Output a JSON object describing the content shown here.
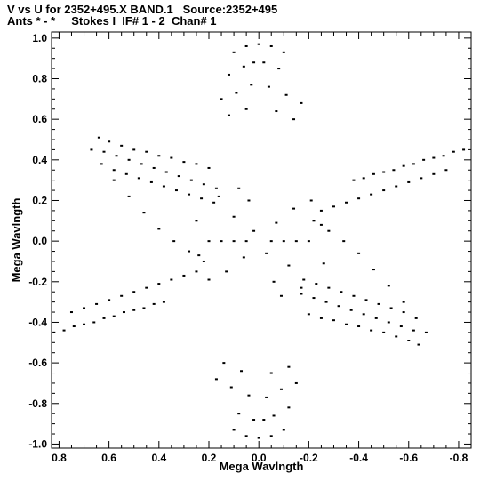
{
  "header": {
    "line1": "V vs U for 2352+495.X BAND.1   Source:2352+495",
    "line2": "Ants * - *     Stokes I  IF# 1 - 2  Chan# 1"
  },
  "chart_data": {
    "type": "scatter",
    "title": "V vs U for 2352+495.X BAND.1   Source:2352+495",
    "subtitle": "Ants * - *     Stokes I  IF# 1 - 2  Chan# 1",
    "xlabel": "Mega Wavlngth",
    "ylabel": "Mega Wavlngth",
    "xlim": [
      0.83,
      -0.85
    ],
    "ylim": [
      -1.02,
      1.03
    ],
    "x_ticks": [
      0.8,
      0.6,
      0.4,
      0.2,
      0.0,
      -0.2,
      -0.4,
      -0.6,
      -0.8
    ],
    "x_tick_labels": [
      "0.8",
      "0.6",
      "0.4",
      "0.2",
      "0.0",
      "-0.2",
      "-0.4",
      "-0.6",
      "-0.8"
    ],
    "y_ticks": [
      1.0,
      0.8,
      0.6,
      0.4,
      0.2,
      0.0,
      -0.2,
      -0.4,
      -0.6,
      -0.8,
      -1.0
    ],
    "y_tick_labels": [
      "1.0",
      "0.8",
      "0.6",
      "0.4",
      "0.2",
      "0.0",
      "-0.2",
      "-0.4",
      "-0.6",
      "-0.8",
      "-1.0"
    ],
    "grid": false,
    "marker_color": "#000000",
    "series": [
      {
        "points": [
          [
            0.0,
            0.97
          ],
          [
            0.05,
            0.96
          ],
          [
            -0.05,
            0.96
          ],
          [
            -0.1,
            0.93
          ],
          [
            0.1,
            0.93
          ],
          [
            0.02,
            0.88
          ],
          [
            -0.02,
            0.88
          ],
          [
            0.06,
            0.86
          ],
          [
            -0.08,
            0.85
          ],
          [
            0.12,
            0.82
          ],
          [
            0.03,
            0.77
          ],
          [
            -0.04,
            0.76
          ],
          [
            0.09,
            0.73
          ],
          [
            -0.11,
            0.72
          ],
          [
            0.15,
            0.7
          ],
          [
            -0.17,
            0.68
          ],
          [
            0.05,
            0.65
          ],
          [
            -0.07,
            0.64
          ],
          [
            0.12,
            0.62
          ],
          [
            -0.14,
            0.6
          ],
          [
            0.0,
            -0.97
          ],
          [
            -0.05,
            -0.96
          ],
          [
            0.05,
            -0.96
          ],
          [
            0.1,
            -0.93
          ],
          [
            -0.1,
            -0.93
          ],
          [
            -0.02,
            -0.88
          ],
          [
            0.02,
            -0.88
          ],
          [
            -0.06,
            -0.86
          ],
          [
            0.08,
            -0.85
          ],
          [
            -0.12,
            -0.82
          ],
          [
            -0.03,
            -0.77
          ],
          [
            0.04,
            -0.76
          ],
          [
            -0.09,
            -0.73
          ],
          [
            0.11,
            -0.72
          ],
          [
            -0.15,
            -0.7
          ],
          [
            0.17,
            -0.68
          ],
          [
            -0.05,
            -0.65
          ],
          [
            0.07,
            -0.64
          ],
          [
            -0.12,
            -0.62
          ],
          [
            0.14,
            -0.6
          ],
          [
            0.64,
            0.51
          ],
          [
            0.6,
            0.49
          ],
          [
            0.55,
            0.47
          ],
          [
            0.5,
            0.45
          ],
          [
            0.45,
            0.44
          ],
          [
            0.4,
            0.42
          ],
          [
            0.35,
            0.41
          ],
          [
            0.3,
            0.39
          ],
          [
            0.25,
            0.38
          ],
          [
            0.2,
            0.36
          ],
          [
            0.62,
            0.44
          ],
          [
            0.57,
            0.42
          ],
          [
            0.52,
            0.4
          ],
          [
            0.47,
            0.38
          ],
          [
            0.42,
            0.36
          ],
          [
            0.37,
            0.34
          ],
          [
            0.32,
            0.32
          ],
          [
            0.27,
            0.3
          ],
          [
            0.22,
            0.28
          ],
          [
            0.17,
            0.26
          ],
          [
            0.58,
            0.35
          ],
          [
            0.53,
            0.33
          ],
          [
            0.48,
            0.31
          ],
          [
            0.43,
            0.29
          ],
          [
            0.38,
            0.27
          ],
          [
            0.33,
            0.25
          ],
          [
            0.28,
            0.23
          ],
          [
            0.23,
            0.21
          ],
          [
            0.18,
            0.19
          ],
          [
            -0.64,
            -0.51
          ],
          [
            -0.6,
            -0.49
          ],
          [
            -0.55,
            -0.47
          ],
          [
            -0.5,
            -0.45
          ],
          [
            -0.45,
            -0.44
          ],
          [
            -0.4,
            -0.42
          ],
          [
            -0.35,
            -0.41
          ],
          [
            -0.3,
            -0.39
          ],
          [
            -0.25,
            -0.38
          ],
          [
            -0.2,
            -0.36
          ],
          [
            -0.62,
            -0.44
          ],
          [
            -0.57,
            -0.42
          ],
          [
            -0.52,
            -0.4
          ],
          [
            -0.47,
            -0.38
          ],
          [
            -0.42,
            -0.36
          ],
          [
            -0.37,
            -0.34
          ],
          [
            -0.32,
            -0.32
          ],
          [
            -0.27,
            -0.3
          ],
          [
            -0.22,
            -0.28
          ],
          [
            -0.17,
            -0.26
          ],
          [
            -0.58,
            -0.35
          ],
          [
            -0.53,
            -0.33
          ],
          [
            -0.48,
            -0.31
          ],
          [
            -0.43,
            -0.29
          ],
          [
            -0.38,
            -0.27
          ],
          [
            -0.33,
            -0.25
          ],
          [
            -0.28,
            -0.23
          ],
          [
            -0.23,
            -0.21
          ],
          [
            -0.18,
            -0.19
          ],
          [
            -0.82,
            0.45
          ],
          [
            -0.78,
            0.44
          ],
          [
            -0.74,
            0.42
          ],
          [
            -0.7,
            0.41
          ],
          [
            -0.66,
            0.4
          ],
          [
            -0.62,
            0.38
          ],
          [
            -0.58,
            0.37
          ],
          [
            -0.54,
            0.35
          ],
          [
            -0.5,
            0.34
          ],
          [
            -0.46,
            0.33
          ],
          [
            -0.42,
            0.31
          ],
          [
            -0.38,
            0.3
          ],
          [
            -0.75,
            0.35
          ],
          [
            -0.7,
            0.33
          ],
          [
            -0.65,
            0.31
          ],
          [
            -0.6,
            0.29
          ],
          [
            -0.55,
            0.27
          ],
          [
            -0.5,
            0.25
          ],
          [
            -0.45,
            0.23
          ],
          [
            -0.4,
            0.21
          ],
          [
            -0.35,
            0.19
          ],
          [
            -0.3,
            0.17
          ],
          [
            -0.25,
            0.15
          ],
          [
            0.82,
            -0.45
          ],
          [
            0.78,
            -0.44
          ],
          [
            0.74,
            -0.42
          ],
          [
            0.7,
            -0.41
          ],
          [
            0.66,
            -0.4
          ],
          [
            0.62,
            -0.38
          ],
          [
            0.58,
            -0.37
          ],
          [
            0.54,
            -0.35
          ],
          [
            0.5,
            -0.34
          ],
          [
            0.46,
            -0.33
          ],
          [
            0.42,
            -0.31
          ],
          [
            0.38,
            -0.3
          ],
          [
            0.75,
            -0.35
          ],
          [
            0.7,
            -0.33
          ],
          [
            0.65,
            -0.31
          ],
          [
            0.6,
            -0.29
          ],
          [
            0.55,
            -0.27
          ],
          [
            0.5,
            -0.25
          ],
          [
            0.45,
            -0.23
          ],
          [
            0.4,
            -0.21
          ],
          [
            0.35,
            -0.19
          ],
          [
            0.3,
            -0.17
          ],
          [
            0.25,
            -0.15
          ],
          [
            -0.67,
            -0.45
          ],
          [
            -0.63,
            -0.38
          ],
          [
            -0.58,
            -0.3
          ],
          [
            -0.52,
            -0.22
          ],
          [
            -0.46,
            -0.14
          ],
          [
            -0.4,
            -0.06
          ],
          [
            -0.34,
            0.0
          ],
          [
            -0.28,
            0.05
          ],
          [
            -0.22,
            0.1
          ],
          [
            0.67,
            0.45
          ],
          [
            0.63,
            0.38
          ],
          [
            0.58,
            0.3
          ],
          [
            0.52,
            0.22
          ],
          [
            0.46,
            0.14
          ],
          [
            0.4,
            0.06
          ],
          [
            0.34,
            0.0
          ],
          [
            0.28,
            -0.05
          ],
          [
            0.22,
            -0.1
          ],
          [
            0.2,
            0.0
          ],
          [
            0.15,
            0.0
          ],
          [
            0.1,
            0.0
          ],
          [
            0.05,
            0.0
          ],
          [
            -0.05,
            0.0
          ],
          [
            -0.1,
            0.0
          ],
          [
            -0.15,
            0.0
          ],
          [
            -0.2,
            0.0
          ],
          [
            0.02,
            0.05
          ],
          [
            -0.03,
            -0.06
          ],
          [
            0.06,
            -0.08
          ],
          [
            -0.07,
            0.09
          ],
          [
            0.1,
            0.12
          ],
          [
            -0.12,
            -0.12
          ],
          [
            0.13,
            -0.15
          ],
          [
            -0.14,
            0.16
          ],
          [
            0.04,
            0.2
          ],
          [
            -0.06,
            -0.2
          ],
          [
            0.08,
            0.26
          ],
          [
            -0.09,
            -0.27
          ],
          [
            0.16,
            0.22
          ],
          [
            -0.17,
            -0.23
          ],
          [
            0.2,
            -0.19
          ],
          [
            -0.21,
            0.2
          ],
          [
            0.25,
            0.1
          ],
          [
            -0.26,
            -0.11
          ],
          [
            0.24,
            -0.07
          ],
          [
            -0.25,
            0.08
          ]
        ]
      }
    ]
  }
}
